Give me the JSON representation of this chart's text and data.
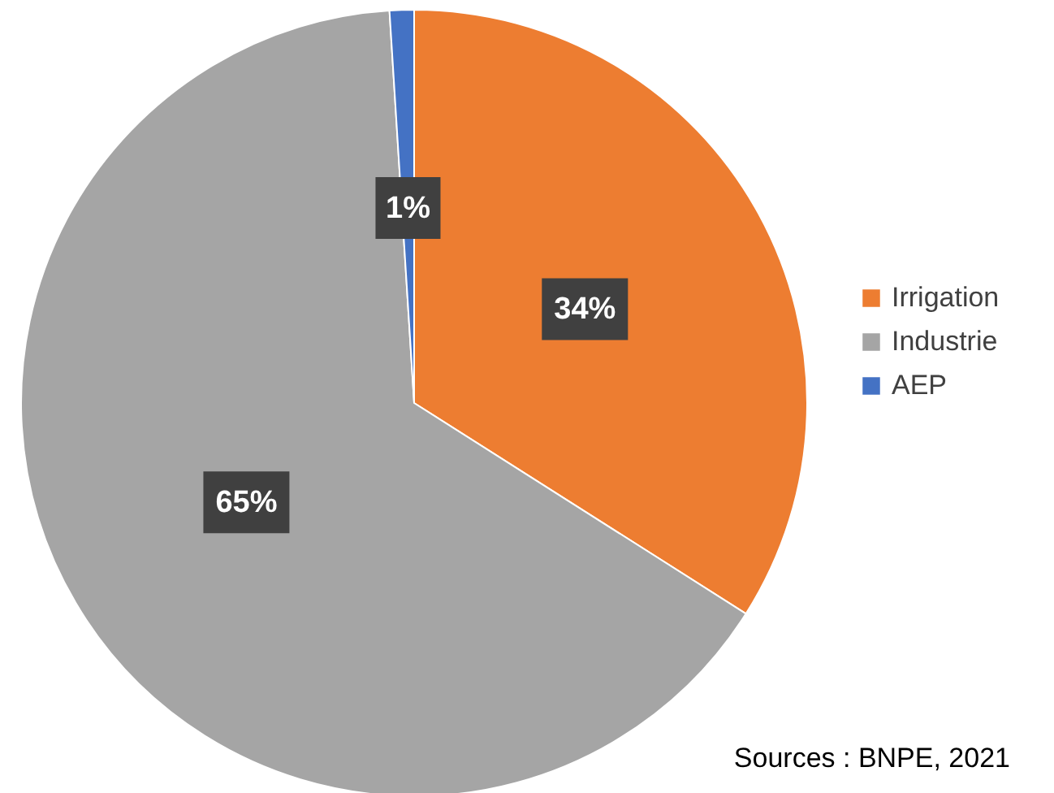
{
  "chart_data": {
    "type": "pie",
    "categories": [
      "Irrigation",
      "Industrie",
      "AEP"
    ],
    "values": [
      34,
      65,
      1
    ],
    "colors": [
      "#ed7d31",
      "#a5a5a5",
      "#4472c4"
    ],
    "value_labels": [
      "34%",
      "65%",
      "1%"
    ],
    "legend": "right",
    "annotations": [
      "Sources : BNPE, 2021"
    ]
  }
}
